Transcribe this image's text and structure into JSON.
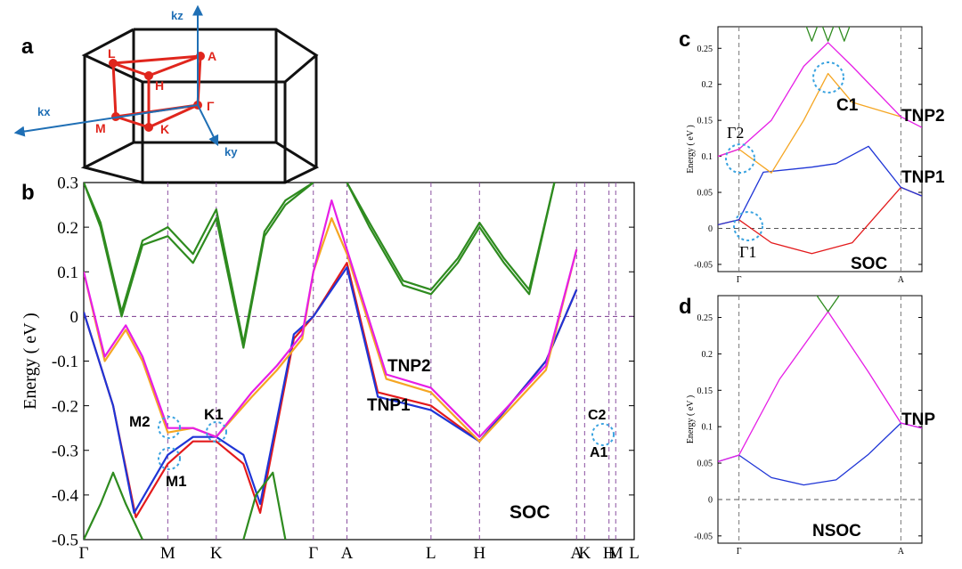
{
  "panels": {
    "a": {
      "label": "a",
      "axes": {
        "kz": "kz",
        "kx": "kx",
        "ky": "ky"
      },
      "points": [
        "L",
        "A",
        "H",
        "Γ",
        "M",
        "K"
      ],
      "colors": {
        "frame": "#111111",
        "path": "#e0261d",
        "axis": "#1f6fb5"
      }
    }
  },
  "chart_data": [
    {
      "panel": "b",
      "type": "line",
      "ylabel": "Energy ( eV )",
      "ylim": [
        -0.5,
        0.3
      ],
      "yticks": [
        "-0.5",
        "-0.4",
        "-0.3",
        "-0.2",
        "-0.1",
        "0",
        "0.1",
        "0.2",
        "0.3"
      ],
      "ytick_values": [
        -0.5,
        -0.4,
        -0.3,
        -0.2,
        -0.1,
        0,
        0.1,
        0.2,
        0.3
      ],
      "kpoints": [
        {
          "label": "Γ",
          "x": 0.0
        },
        {
          "label": "M",
          "x": 1.0
        },
        {
          "label": "K",
          "x": 1.577
        },
        {
          "label": "Γ",
          "x": 2.732
        },
        {
          "label": "A",
          "x": 3.132
        },
        {
          "label": "L",
          "x": 4.132
        },
        {
          "label": "H",
          "x": 4.709
        },
        {
          "label": "A",
          "x": 5.864
        },
        {
          "label": "K",
          "x": 5.96
        },
        {
          "label": "H",
          "x": 6.25
        },
        {
          "label": "M",
          "x": 6.33
        },
        {
          "label": "L",
          "x": 6.55
        }
      ],
      "segments": [
        [
          0.0,
          2.732
        ],
        [
          2.732,
          5.864
        ],
        [
          5.864,
          6.25
        ],
        [
          6.33,
          6.55
        ]
      ],
      "series": [
        {
          "name": "band-1",
          "color": "#e31a1c",
          "x": [
            0,
            0.35,
            0.62,
            1.0,
            1.3,
            1.577,
            1.9,
            2.1,
            2.5,
            2.732,
            3.132,
            3.5,
            4.132,
            4.709,
            5.5,
            5.864
          ],
          "y": [
            0.01,
            -0.2,
            -0.45,
            -0.33,
            -0.28,
            -0.28,
            -0.33,
            -0.44,
            -0.05,
            0.0,
            0.12,
            -0.17,
            -0.2,
            -0.28,
            -0.1,
            0.06
          ]
        },
        {
          "name": "band-2",
          "color": "#1f35d6",
          "x": [
            0,
            0.35,
            0.6,
            1.0,
            1.3,
            1.577,
            1.9,
            2.1,
            2.5,
            2.732,
            3.132,
            3.5,
            4.132,
            4.709,
            5.5,
            5.864
          ],
          "y": [
            0.01,
            -0.2,
            -0.44,
            -0.31,
            -0.27,
            -0.27,
            -0.31,
            -0.42,
            -0.04,
            0.0,
            0.11,
            -0.18,
            -0.21,
            -0.28,
            -0.1,
            0.06
          ]
        },
        {
          "name": "band-3",
          "color": "#f5a623",
          "x": [
            0,
            0.25,
            0.5,
            0.7,
            1.0,
            1.3,
            1.577,
            2.0,
            2.3,
            2.6,
            2.732,
            2.95,
            3.132,
            3.6,
            4.132,
            4.709,
            5.5,
            5.864
          ],
          "y": [
            0.1,
            -0.1,
            -0.03,
            -0.1,
            -0.26,
            -0.25,
            -0.27,
            -0.18,
            -0.12,
            -0.05,
            0.1,
            0.22,
            0.14,
            -0.14,
            -0.17,
            -0.28,
            -0.12,
            0.15
          ]
        },
        {
          "name": "band-4",
          "color": "#e61ee6",
          "x": [
            0,
            0.25,
            0.5,
            0.7,
            1.0,
            1.3,
            1.577,
            2.0,
            2.3,
            2.6,
            2.732,
            2.95,
            3.132,
            3.6,
            4.132,
            4.709,
            5.5,
            5.864
          ],
          "y": [
            0.1,
            -0.09,
            -0.02,
            -0.09,
            -0.25,
            -0.25,
            -0.27,
            -0.17,
            -0.11,
            -0.04,
            0.1,
            0.26,
            0.15,
            -0.13,
            -0.16,
            -0.27,
            -0.11,
            0.15
          ]
        },
        {
          "name": "band-5",
          "color": "#2e8b1f",
          "x": [
            0,
            0.2,
            0.45,
            0.7,
            1.0,
            1.3,
            1.577,
            1.9,
            2.15,
            2.4,
            2.732
          ],
          "y": [
            0.3,
            0.2,
            0.0,
            0.16,
            0.18,
            0.12,
            0.22,
            -0.07,
            0.18,
            0.25,
            0.3
          ]
        },
        {
          "name": "band-6",
          "color": "#2e8b1f",
          "x": [
            0,
            0.2,
            0.45,
            0.7,
            1.0,
            1.3,
            1.577,
            1.9,
            2.15,
            2.4,
            2.732
          ],
          "y": [
            0.3,
            0.21,
            0.01,
            0.17,
            0.2,
            0.14,
            0.24,
            -0.06,
            0.19,
            0.26,
            0.3
          ]
        },
        {
          "name": "band-7",
          "color": "#2e8b1f",
          "x": [
            3.132,
            3.4,
            3.8,
            4.132,
            4.45,
            4.709,
            5.0,
            5.3,
            5.6
          ],
          "y": [
            0.3,
            0.2,
            0.07,
            0.05,
            0.12,
            0.2,
            0.12,
            0.05,
            0.3
          ]
        },
        {
          "name": "band-8",
          "color": "#2e8b1f",
          "x": [
            3.132,
            3.4,
            3.8,
            4.132,
            4.45,
            4.709,
            5.0,
            5.3,
            5.6
          ],
          "y": [
            0.3,
            0.21,
            0.08,
            0.06,
            0.13,
            0.21,
            0.13,
            0.06,
            0.3
          ]
        },
        {
          "name": "band-9",
          "color": "#2e8b1f",
          "x": [
            0.0,
            0.2,
            0.35,
            0.5,
            0.7
          ],
          "y": [
            -0.5,
            -0.42,
            -0.35,
            -0.42,
            -0.5
          ]
        },
        {
          "name": "band-10",
          "color": "#2e8b1f",
          "x": [
            1.9,
            2.05,
            2.25,
            2.4
          ],
          "y": [
            -0.5,
            -0.4,
            -0.35,
            -0.5
          ]
        }
      ],
      "annotations": [
        "M2",
        "M1",
        "K1",
        "TNP2",
        "TNP1",
        "C2",
        "A1",
        "SOC"
      ]
    },
    {
      "panel": "c",
      "type": "line",
      "ylabel": "Energy ( eV )",
      "ylim": [
        -0.06,
        0.28
      ],
      "yticks": [
        "-0.05",
        "0",
        "0.05",
        "0.1",
        "0.15",
        "0.2",
        "0.25"
      ],
      "ytick_values": [
        -0.05,
        0,
        0.05,
        0.1,
        0.15,
        0.2,
        0.25
      ],
      "kpoints": [
        {
          "label": "Γ",
          "x": 0.0
        },
        {
          "label": "A",
          "x": 1.0
        }
      ],
      "xlim": [
        -0.13,
        1.13
      ],
      "series": [
        {
          "name": "red",
          "color": "#e31a1c",
          "x": [
            -0.13,
            0.0,
            0.2,
            0.45,
            0.7,
            1.0,
            1.13
          ],
          "y": [
            0.005,
            0.012,
            -0.02,
            -0.035,
            -0.02,
            0.057,
            0.045
          ]
        },
        {
          "name": "blue",
          "color": "#1f35d6",
          "x": [
            -0.13,
            0.0,
            0.15,
            0.45,
            0.6,
            0.8,
            1.0,
            1.13
          ],
          "y": [
            0.005,
            0.012,
            0.078,
            0.085,
            0.09,
            0.114,
            0.057,
            0.045
          ]
        },
        {
          "name": "orange",
          "color": "#f5a623",
          "x": [
            -0.13,
            0.0,
            0.2,
            0.4,
            0.55,
            0.7,
            1.0
          ],
          "y": [
            0.1,
            0.11,
            0.077,
            0.15,
            0.215,
            0.175,
            0.155
          ]
        },
        {
          "name": "magenta",
          "color": "#e61ee6",
          "x": [
            -0.13,
            0.0,
            0.2,
            0.4,
            0.55,
            0.7,
            1.0,
            1.13
          ],
          "y": [
            0.1,
            0.11,
            0.15,
            0.225,
            0.258,
            0.225,
            0.155,
            0.14
          ]
        },
        {
          "name": "green",
          "color": "#2e8b1f",
          "x": [
            0.4,
            0.45,
            0.5,
            0.55,
            0.6,
            0.65,
            0.7
          ],
          "y": [
            0.29,
            0.26,
            0.29,
            0.26,
            0.29,
            0.26,
            0.29
          ]
        }
      ],
      "annotations": [
        "Γ2",
        "Γ1",
        "C1",
        "TNP2",
        "TNP1",
        "SOC"
      ]
    },
    {
      "panel": "d",
      "type": "line",
      "ylabel": "Energy ( eV )",
      "ylim": [
        -0.06,
        0.28
      ],
      "yticks": [
        "-0.05",
        "0",
        "0.05",
        "0.1",
        "0.15",
        "0.2",
        "0.25"
      ],
      "ytick_values": [
        -0.05,
        0,
        0.05,
        0.1,
        0.15,
        0.2,
        0.25
      ],
      "kpoints": [
        {
          "label": "Γ",
          "x": 0.0
        },
        {
          "label": "A",
          "x": 1.0
        }
      ],
      "xlim": [
        -0.13,
        1.13
      ],
      "series": [
        {
          "name": "blue",
          "color": "#1f35d6",
          "x": [
            -0.13,
            0.0,
            0.2,
            0.4,
            0.6,
            0.8,
            1.0,
            1.13
          ],
          "y": [
            0.052,
            0.061,
            0.03,
            0.02,
            0.027,
            0.062,
            0.105,
            0.098
          ]
        },
        {
          "name": "magenta",
          "color": "#e61ee6",
          "x": [
            -0.13,
            0.0,
            0.25,
            0.55,
            0.8,
            1.0,
            1.13
          ],
          "y": [
            0.052,
            0.061,
            0.165,
            0.258,
            0.175,
            0.105,
            0.098
          ]
        },
        {
          "name": "green",
          "color": "#2e8b1f",
          "x": [
            0.45,
            0.55,
            0.65
          ],
          "y": [
            0.29,
            0.258,
            0.29
          ]
        }
      ],
      "annotations": [
        "TNP",
        "NSOC"
      ]
    }
  ]
}
